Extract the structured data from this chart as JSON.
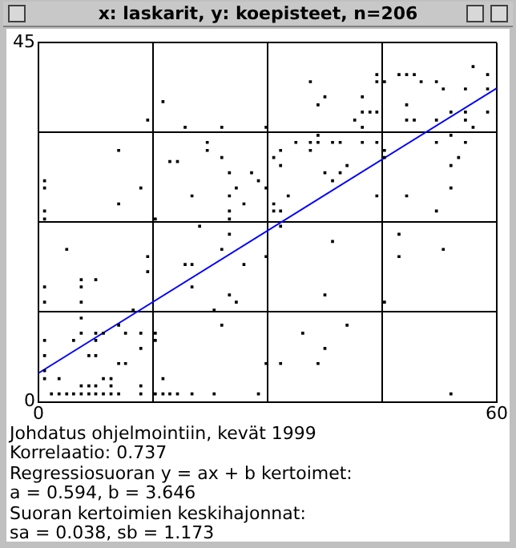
{
  "chart_data": {
    "type": "scatter",
    "title": "x: laskarit, y: koepisteet, n=206",
    "xlim": [
      0,
      60
    ],
    "ylim": [
      0,
      45
    ],
    "xticks": [
      0,
      {
        "value": 15,
        "label": null
      },
      {
        "value": 30,
        "label": null
      },
      {
        "value": 45,
        "label": null
      },
      60
    ],
    "yticks": [
      0,
      {
        "value": 11.25,
        "label": null
      },
      {
        "value": 22.5,
        "label": null
      },
      {
        "value": 33.75,
        "label": null
      },
      45
    ],
    "grid": true,
    "legend": false,
    "marker": "square",
    "series": [
      {
        "color": "#000000",
        "x": [
          16.3,
          14.3,
          19.2,
          24,
          29.8,
          10.5,
          17.2,
          18.2,
          22.1,
          22.1,
          24,
          0.8,
          0.8,
          13.4,
          25,
          27.9,
          28.8,
          25.9,
          20.1,
          25,
          10.5,
          26.9,
          0.8,
          0.8,
          25,
          25,
          15.3,
          56.9,
          44.3,
          47.2,
          48.2,
          49.2,
          58.8,
          44.3,
          45.3,
          35.6,
          50.1,
          52.1,
          53,
          55.9,
          58.8,
          37.5,
          42.4,
          36.6,
          48.2,
          42.4,
          43.4,
          44.3,
          54,
          55.9,
          58.8,
          41.4,
          48.2,
          49.2,
          52.1,
          55.9,
          42.4,
          56.9,
          54,
          36.6,
          33.7,
          35.6,
          36.6,
          38.5,
          39.5,
          42.4,
          44.3,
          52.1,
          55.9,
          31.7,
          35.6,
          45.3,
          30.8,
          45.3,
          55,
          31.7,
          40.4,
          54,
          37.5,
          39.5,
          38.5,
          54,
          29.8,
          32.7,
          44.3,
          48.2,
          30.8,
          31.7,
          30.8,
          52.1,
          21.1,
          25,
          3.7,
          24,
          14.3,
          19.2,
          20.1,
          26.9,
          14.3,
          5.6,
          7.5,
          0.8,
          5.6,
          20.1,
          25,
          0.8,
          5.6,
          25.9,
          12.4,
          23,
          5.6,
          24,
          10.5,
          0.8,
          4.6,
          5.6,
          7.5,
          8.5,
          11.4,
          13.4,
          15.3,
          15.3,
          7.5,
          0.8,
          6.6,
          7.5,
          13.4,
          10.5,
          11.4,
          0.8,
          0.8,
          2.7,
          8.5,
          9.5,
          16.3,
          5.6,
          6.6,
          7.5,
          9.5,
          13.4,
          1.7,
          2.7,
          3.7,
          4.6,
          5.6,
          6.6,
          7.5,
          8.5,
          9.5,
          10.5,
          13.4,
          15.3,
          16.3,
          17.2,
          18.2,
          20.1,
          23,
          28.8,
          31.7,
          38.5,
          47.2,
          47.2,
          53,
          29.8,
          37.5,
          45.3,
          40.4,
          34.6,
          37.5,
          29.8,
          31.7,
          36.6,
          54
        ],
        "values": [
          37.6,
          35.3,
          34.4,
          34.4,
          34.4,
          31.5,
          30.1,
          30.1,
          32.5,
          31.5,
          30.6,
          27.7,
          26.8,
          26.8,
          28.7,
          28.7,
          27.7,
          26.8,
          25.8,
          25.8,
          24.8,
          24.8,
          23.9,
          22.9,
          23.9,
          22.9,
          22.9,
          42,
          41,
          41,
          41,
          41,
          41,
          40.1,
          40.1,
          40.1,
          40.1,
          40.1,
          39.2,
          39.2,
          39.2,
          38.2,
          38.2,
          37.2,
          37.2,
          36.3,
          36.3,
          36.3,
          36.3,
          36.3,
          36.3,
          35.3,
          35.3,
          35.3,
          35.3,
          35.3,
          34.4,
          34.4,
          33.4,
          33.4,
          32.5,
          32.5,
          32.5,
          32.5,
          32.5,
          32.5,
          32.5,
          32.5,
          32.5,
          31.5,
          31.5,
          31.5,
          30.6,
          30.6,
          30.6,
          29.6,
          29.6,
          29.6,
          28.7,
          28.7,
          27.7,
          26.8,
          26.8,
          25.8,
          25.8,
          25.8,
          24.8,
          23.9,
          23.9,
          23.9,
          22,
          21,
          19.1,
          19.1,
          18.2,
          17.2,
          17.2,
          17.2,
          16.3,
          15.3,
          15.3,
          14.4,
          14.4,
          14.4,
          13.4,
          12.5,
          12.5,
          12.5,
          11.5,
          11.5,
          10.5,
          9.6,
          9.6,
          7.7,
          7.7,
          8.6,
          8.6,
          8.6,
          8.6,
          8.6,
          8.6,
          7.7,
          7.7,
          5.8,
          5.8,
          5.8,
          6.7,
          4.8,
          4.8,
          3.9,
          2.9,
          2.9,
          2.9,
          2.9,
          2.9,
          2,
          2,
          2,
          2,
          2,
          1,
          1,
          1,
          1,
          1,
          1,
          1,
          1,
          1,
          1,
          1,
          1,
          1,
          1,
          1,
          1,
          1,
          1,
          22,
          20.1,
          21,
          18.2,
          19.1,
          18.2,
          13.4,
          12.5,
          9.6,
          8.6,
          6.7,
          4.8,
          4.8,
          4.8,
          1
        ]
      },
      {
        "type": "line",
        "color": "#0000ff",
        "x": [
          0,
          60
        ],
        "values": [
          3.6,
          39.3
        ],
        "marker": "none"
      }
    ],
    "annotations": [
      "Johdatus ohjelmointiin, kevät 1999",
      "Korrelaatio: 0.737",
      "Regressiosuoran y = ax + b kertoimet:",
      "a = 0.594, b = 3.646",
      "Suoran kertoimien keskihajonnat:",
      "sa = 0.038, sb = 1.173"
    ]
  }
}
